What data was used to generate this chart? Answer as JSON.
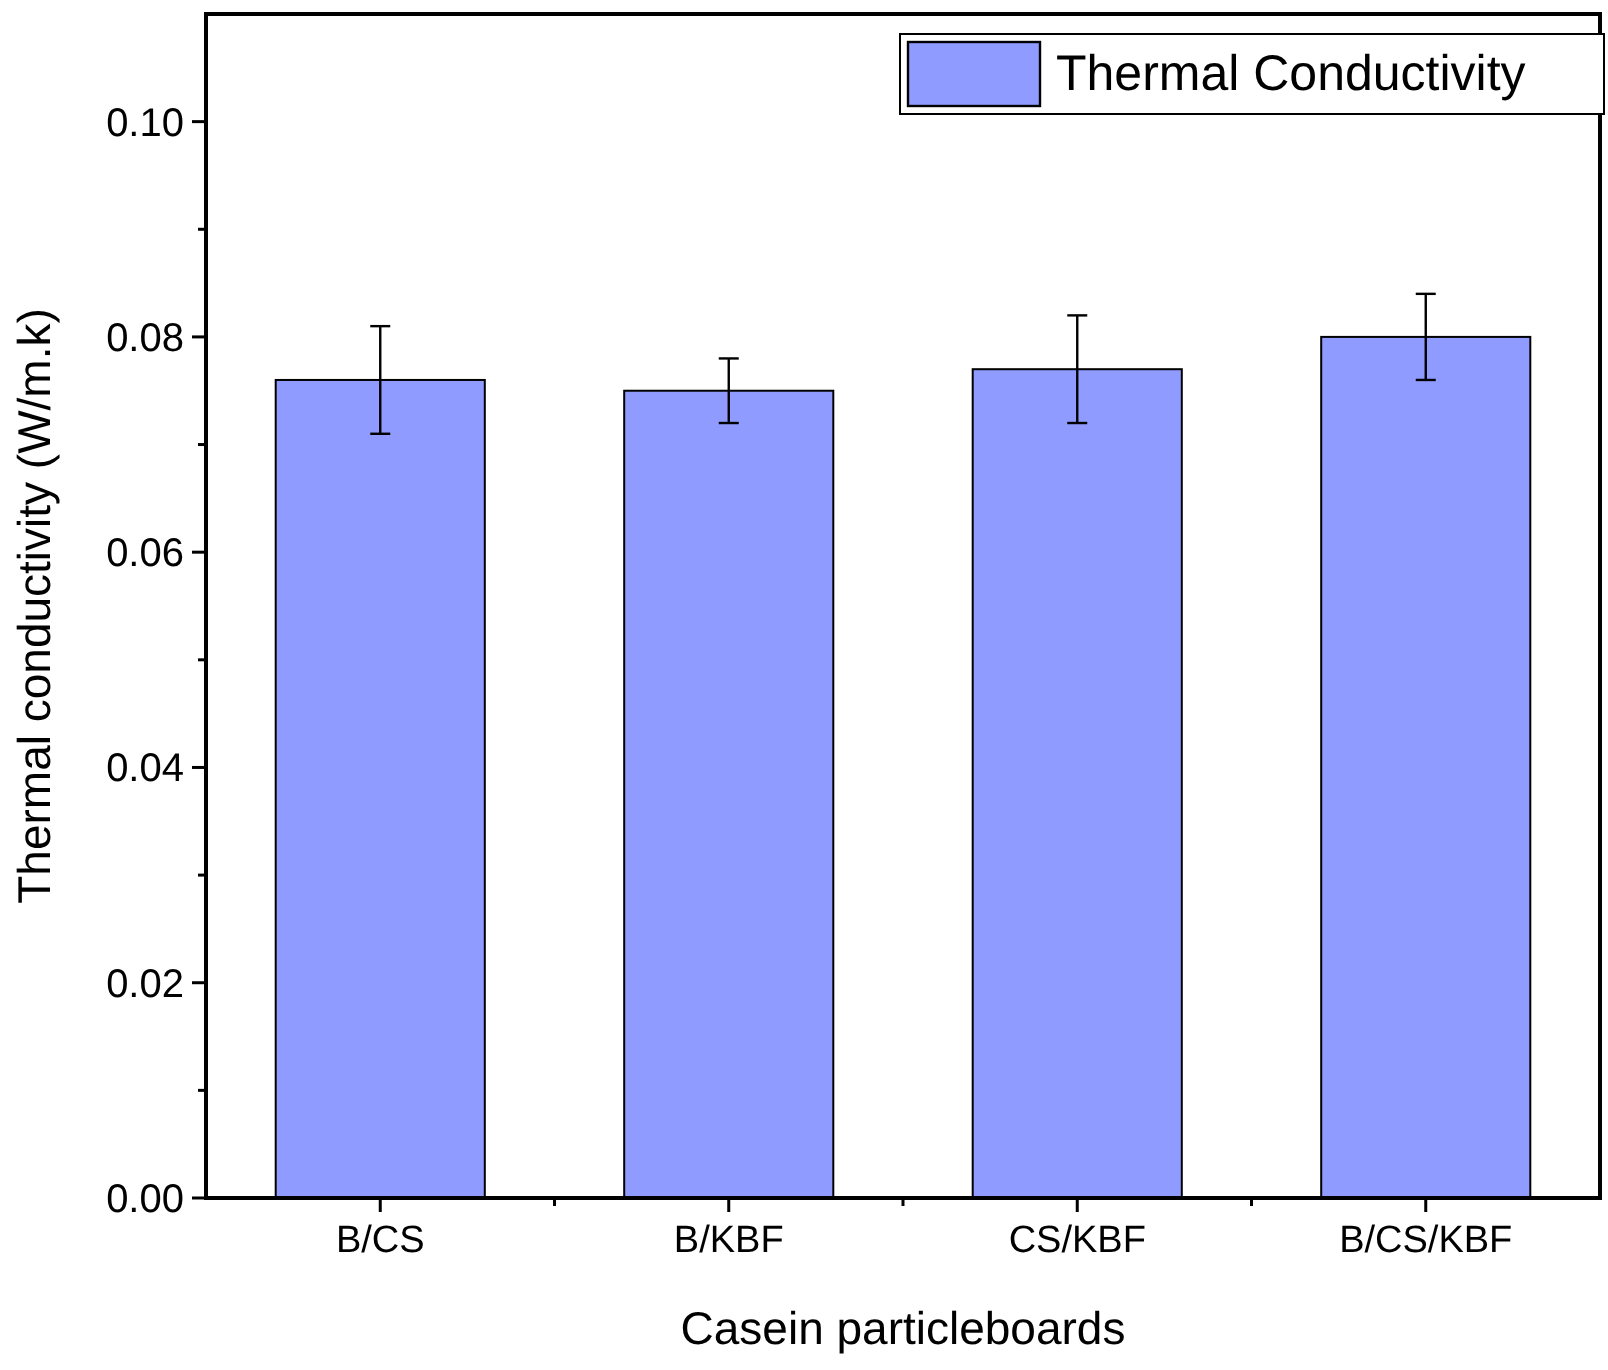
{
  "chart_data": {
    "type": "bar",
    "xlabel": "Casein particleboards",
    "ylabel": "Thermal conductivity (W/m.k)",
    "categories": [
      "B/CS",
      "B/KBF",
      "CS/KBF",
      "B/CS/KBF"
    ],
    "series": [
      {
        "name": "Thermal Conductivity",
        "color": "#8f9bff",
        "values": [
          0.076,
          0.075,
          0.077,
          0.08
        ],
        "errors": [
          [
            0.071,
            0.081
          ],
          [
            0.072,
            0.078
          ],
          [
            0.072,
            0.082
          ],
          [
            0.076,
            0.084
          ]
        ]
      }
    ],
    "ylim": [
      0,
      0.11
    ],
    "yticks": [
      "0.00",
      {
        "value": 0.01,
        "label": null
      },
      {
        "value": 0.02,
        "label": "0.02"
      },
      {
        "value": 0.03,
        "label": null
      },
      {
        "value": 0.04,
        "label": "0.04"
      },
      {
        "value": 0.05,
        "label": null
      },
      {
        "value": 0.06,
        "label": "0.06"
      },
      {
        "value": 0.07,
        "label": null
      },
      {
        "value": 0.08,
        "label": "0.08"
      },
      {
        "value": 0.09,
        "label": null
      },
      {
        "value": 0.1,
        "label": "0.10"
      }
    ],
    "grid": false,
    "legend": "top right"
  }
}
